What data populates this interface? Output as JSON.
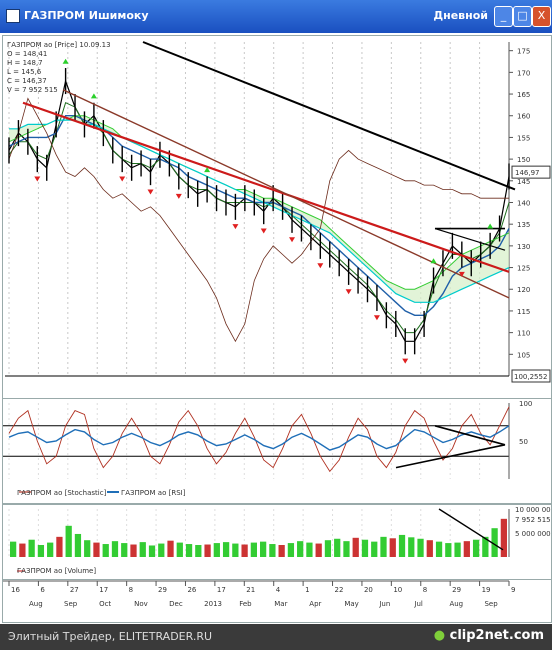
{
  "window": {
    "title": "ГАЗПРОМ Ишимоку",
    "period": "Дневной",
    "minimize": "_",
    "maximize": "□",
    "close": "X"
  },
  "price_info": {
    "name": "ГАЗПРОМ ао [Price] 10.09.13",
    "open": "O = 148,41",
    "high": "H = 148,7",
    "low": "L = 145,6",
    "close": "C = 146,37",
    "volume": "V = 7 952 515",
    "last_price": "146,97",
    "floor_label": "100,2552"
  },
  "legends": {
    "stochastic": "ГАЗПРОМ ао [Stochastic]",
    "rsi": "ГАЗПРОМ ао [RSI]",
    "volume": "ГАЗПРОМ ао [Volume]"
  },
  "volume_labels": [
    "10 000 000",
    "7 952 515",
    "5 000 000"
  ],
  "colors": {
    "candle": "#000000",
    "senkou_a": "#33cc33",
    "senkou_b": "#00cccc",
    "kijun": "#1f5fa8",
    "tenkan": "#1f6f1f",
    "chikou": "#6b2a1a",
    "trend_black": "#000000",
    "trend_red": "#cc1a1a",
    "trend_brown": "#8b3a2a",
    "stochastic": "#b03020",
    "rsi": "#1f6fb8",
    "volume_up": "#33cc33",
    "volume_down": "#cc3333",
    "buy_marker": "#2bd02b",
    "sell_marker": "#e02020"
  },
  "chart_data": [
    {
      "type": "line",
      "title": "ГАЗПРОМ ао [Price]",
      "x_tick_labels": [
        "16",
        "6",
        "27",
        "17",
        "8",
        "29",
        "26",
        "17",
        "21",
        "4",
        "1",
        "22",
        "20",
        "10",
        "8",
        "29",
        "19",
        "9"
      ],
      "x_period_labels": [
        "Aug",
        "Sep",
        "Oct",
        "Nov",
        "Dec",
        "2013",
        "Feb",
        "Mar",
        "Apr",
        "May",
        "Jun",
        "Jul",
        "Aug",
        "Sep"
      ],
      "y_ticks": [
        105,
        110,
        115,
        120,
        125,
        130,
        135,
        140,
        145,
        150,
        155,
        160,
        165,
        170,
        175
      ],
      "ylim": [
        100,
        177
      ],
      "series": [
        {
          "name": "Close",
          "values": [
            152,
            156,
            154,
            150,
            148,
            158,
            168,
            162,
            158,
            160,
            156,
            152,
            150,
            148,
            149,
            147,
            151,
            149,
            146,
            144,
            142,
            143,
            141,
            140,
            139,
            141,
            140,
            138,
            141,
            139,
            136,
            134,
            132,
            130,
            128,
            126,
            124,
            122,
            120,
            118,
            114,
            112,
            108,
            108,
            112,
            122,
            126,
            130,
            128,
            126,
            128,
            130,
            134,
            146
          ]
        },
        {
          "name": "Tenkan",
          "values": [
            151,
            154,
            154,
            151,
            150,
            156,
            163,
            162,
            158,
            158,
            156,
            152,
            150,
            149,
            149,
            148,
            150,
            149,
            146,
            144,
            143,
            143,
            141,
            140,
            140,
            140,
            140,
            139,
            140,
            139,
            137,
            135,
            133,
            131,
            129,
            127,
            125,
            123,
            121,
            118,
            115,
            113,
            110,
            110,
            113,
            120,
            125,
            128,
            128,
            127,
            128,
            130,
            133,
            140
          ]
        },
        {
          "name": "Kijun",
          "values": [
            153,
            154,
            155,
            155,
            155,
            156,
            160,
            160,
            159,
            158,
            157,
            155,
            153,
            152,
            151,
            150,
            150,
            149,
            148,
            146,
            145,
            144,
            143,
            142,
            141,
            141,
            140,
            140,
            140,
            139,
            138,
            137,
            135,
            133,
            131,
            129,
            127,
            125,
            123,
            121,
            119,
            117,
            115,
            114,
            114,
            116,
            119,
            123,
            125,
            126,
            127,
            128,
            130,
            134
          ]
        },
        {
          "name": "Senkou A",
          "values": [
            154,
            155,
            156,
            157,
            158,
            159,
            159,
            160,
            160,
            159,
            158,
            157,
            155,
            154,
            153,
            152,
            151,
            150,
            149,
            148,
            147,
            146,
            145,
            144,
            143,
            143,
            142,
            141,
            141,
            140,
            139,
            138,
            137,
            136,
            134,
            132,
            130,
            128,
            126,
            124,
            122,
            121,
            120,
            120,
            121,
            122,
            124,
            126,
            128,
            129,
            130,
            131,
            132,
            133
          ]
        },
        {
          "name": "Senkou B",
          "values": [
            157,
            157,
            158,
            158,
            158,
            159,
            159,
            159,
            158,
            158,
            157,
            156,
            155,
            154,
            153,
            152,
            151,
            150,
            149,
            148,
            147,
            146,
            145,
            144,
            143,
            142,
            141,
            140,
            139,
            138,
            137,
            136,
            135,
            134,
            133,
            131,
            129,
            127,
            125,
            123,
            121,
            119,
            118,
            117,
            117,
            117,
            118,
            119,
            120,
            121,
            122,
            123,
            124,
            125
          ]
        },
        {
          "name": "Chikou",
          "values": [
            150,
            156,
            164,
            160,
            156,
            151,
            147,
            146,
            148,
            146,
            143,
            141,
            142,
            140,
            138,
            139,
            137,
            134,
            131,
            128,
            125,
            122,
            118,
            112,
            108,
            112,
            122,
            127,
            130,
            128,
            126,
            128,
            131,
            134,
            145,
            150,
            152,
            150,
            149,
            148,
            147,
            146,
            145,
            145,
            144,
            144,
            143,
            143,
            142,
            142,
            141,
            141,
            141,
            141
          ]
        }
      ],
      "trend_lines": [
        "black descending resistance",
        "red descending channel",
        "brown descending channel",
        "triangle near Aug–Sep 2013"
      ],
      "grid": true,
      "legend": "top-left"
    },
    {
      "type": "line",
      "title": "Oscillators",
      "y_ticks": [
        50,
        100
      ],
      "ylim": [
        0,
        100
      ],
      "series": [
        {
          "name": "ГАЗПРОМ ао [Stochastic]",
          "values": [
            60,
            80,
            90,
            50,
            20,
            30,
            70,
            90,
            85,
            40,
            15,
            30,
            60,
            80,
            60,
            30,
            20,
            45,
            75,
            90,
            70,
            40,
            20,
            35,
            60,
            80,
            55,
            25,
            15,
            40,
            70,
            85,
            60,
            30,
            10,
            25,
            55,
            80,
            65,
            30,
            15,
            35,
            70,
            90,
            80,
            50,
            25,
            40,
            70,
            85,
            60,
            45,
            70,
            95
          ]
        },
        {
          "name": "ГАЗПРОМ ао [RSI]",
          "values": [
            55,
            60,
            62,
            55,
            48,
            50,
            58,
            65,
            62,
            52,
            45,
            48,
            55,
            60,
            55,
            48,
            44,
            50,
            58,
            62,
            58,
            50,
            44,
            46,
            52,
            58,
            52,
            44,
            40,
            46,
            55,
            60,
            54,
            46,
            38,
            42,
            50,
            58,
            55,
            46,
            40,
            44,
            55,
            65,
            62,
            55,
            48,
            52,
            58,
            62,
            58,
            55,
            62,
            70
          ]
        }
      ],
      "horizontal_lines": [
        30,
        70
      ],
      "legend": "bottom-left"
    },
    {
      "type": "bar",
      "title": "ГАЗПРОМ ао [Volume]",
      "ylabel": "",
      "y_ticks": [
        5000000,
        7952515,
        10000000
      ],
      "values": [
        3200000,
        2800000,
        3600000,
        2500000,
        3000000,
        4200000,
        6500000,
        4800000,
        3500000,
        3000000,
        2700000,
        3300000,
        2900000,
        2600000,
        3100000,
        2400000,
        2800000,
        3400000,
        3000000,
        2700000,
        2500000,
        2600000,
        2900000,
        3100000,
        2800000,
        2600000,
        3000000,
        3200000,
        2700000,
        2500000,
        2900000,
        3300000,
        3000000,
        2800000,
        3500000,
        3800000,
        3300000,
        4000000,
        3600000,
        3200000,
        4200000,
        3900000,
        4600000,
        4100000,
        3800000,
        3500000,
        3200000,
        2900000,
        3000000,
        3300000,
        3600000,
        4200000,
        6000000,
        7952515
      ]
    }
  ]
}
